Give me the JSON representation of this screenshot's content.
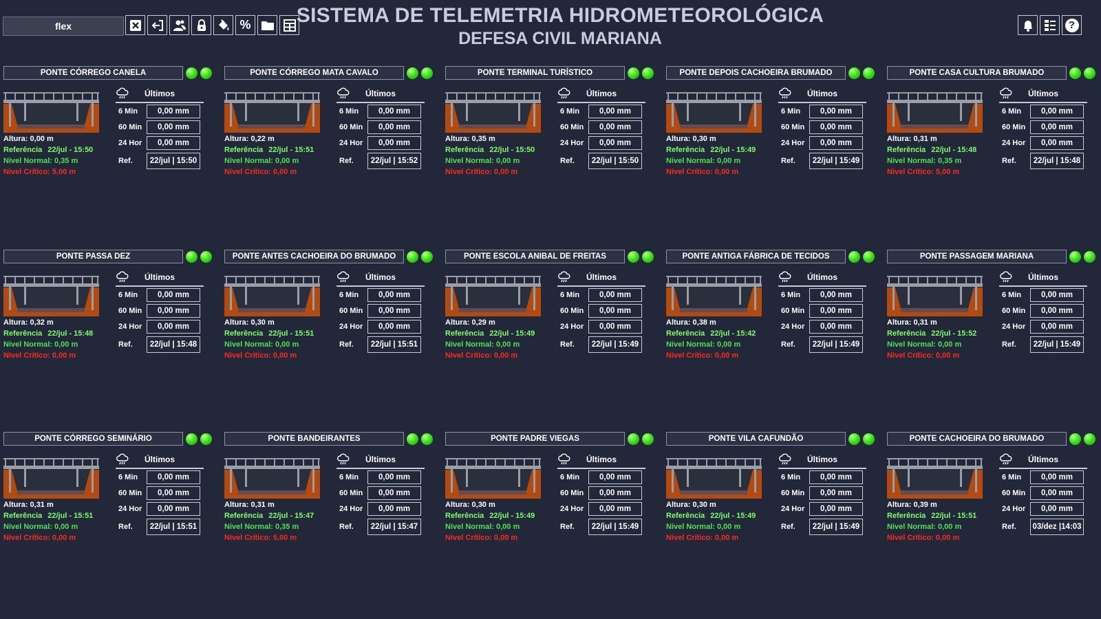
{
  "header": {
    "user": "flex",
    "title": "SISTEMA DE TELEMETRIA HIDROMETEOROLÓGICA",
    "subtitle": "DEFESA CIVIL MARIANA",
    "toolbar_icons": [
      "close-icon",
      "logout-icon",
      "users-icon",
      "lock-icon",
      "paint-bucket-icon",
      "percent-icon",
      "folder-icon",
      "grid-icon"
    ],
    "right_icons": [
      "bell-icon",
      "list-icon",
      "help-icon"
    ],
    "percent_symbol": "%",
    "help_symbol": "?"
  },
  "labels": {
    "ultimos": "Últimos",
    "m6": "6 Min",
    "m60": "60 Min",
    "h24": "24 Hor",
    "ref": "Ref.",
    "altura": "Altura:",
    "referencia": "Referência",
    "normal": "Nivel Normal:",
    "critico": "Nivel Crítico:"
  },
  "colors": {
    "background": "#23273a",
    "led_on": "#3ee51b",
    "referencia": "#7dff6a",
    "normal": "#4ee34e",
    "critico": "#ff2a1a",
    "terrain": "#b34a10"
  },
  "stations": [
    {
      "name": "PONTE CÓRREGO CANELA",
      "altura": "0,00 m",
      "referencia": "22/jul - 15:50",
      "normal": "0,35 m",
      "critico": "5,00 m",
      "min6": "0,00 mm",
      "min60": "0,00 mm",
      "hor24": "0,00 mm",
      "ref": "22/jul | 15:50"
    },
    {
      "name": "PONTE CÓRREGO MATA CAVALO",
      "altura": "0,22 m",
      "referencia": "22/jul - 15:51",
      "normal": "0,00 m",
      "critico": "0,00 m",
      "min6": "0,00 mm",
      "min60": "0,00 mm",
      "hor24": "0,00 mm",
      "ref": "22/jul | 15:52"
    },
    {
      "name": "PONTE TERMINAL TURÍSTICO",
      "altura": "0,35 m",
      "referencia": "22/jul - 15:50",
      "normal": "0,00 m",
      "critico": "0,00 m",
      "min6": "0,00 mm",
      "min60": "0,00 mm",
      "hor24": "0,00 mm",
      "ref": "22/jul | 15:50"
    },
    {
      "name": "PONTE DEPOIS CACHOEIRA BRUMADO",
      "altura": "0,30 m",
      "referencia": "22/jul - 15:49",
      "normal": "0,00 m",
      "critico": "0,00 m",
      "min6": "0,00 mm",
      "min60": "0,00 mm",
      "hor24": "0,00 mm",
      "ref": "22/jul | 15:49"
    },
    {
      "name": "PONTE CASA CULTURA BRUMADO",
      "altura": "0,31 m",
      "referencia": "22/jul - 15:48",
      "normal": "0,35 m",
      "critico": "5,00 m",
      "min6": "0,00 mm",
      "min60": "0,00 mm",
      "hor24": "0,00 mm",
      "ref": "22/jul | 15:48"
    },
    {
      "name": "PONTE PASSA DEZ",
      "altura": "0,32 m",
      "referencia": "22/jul - 15:48",
      "normal": "0,00 m",
      "critico": "0,00 m",
      "min6": "0,00 mm",
      "min60": "0,00 mm",
      "hor24": "0,00 mm",
      "ref": "22/jul | 15:48"
    },
    {
      "name": "PONTE ANTES CACHOEIRA DO BRUMADO",
      "altura": "0,30 m",
      "referencia": "22/jul - 15:51",
      "normal": "0,00 m",
      "critico": "0,00 m",
      "min6": "0,00 mm",
      "min60": "0,00 mm",
      "hor24": "0,00 mm",
      "ref": "22/jul | 15:51"
    },
    {
      "name": "PONTE ESCOLA ANIBAL DE FREITAS",
      "altura": "0,29 m",
      "referencia": "22/jul - 15:49",
      "normal": "0,00 m",
      "critico": "0,00 m",
      "min6": "0,00 mm",
      "min60": "0,00 mm",
      "hor24": "0,00 mm",
      "ref": "22/jul | 15:49"
    },
    {
      "name": "PONTE ANTIGA FÁBRICA DE TECIDOS",
      "altura": "0,38 m",
      "referencia": "22/jul - 15:42",
      "normal": "0,00 m",
      "critico": "0,00 m",
      "min6": "0,00 mm",
      "min60": "0,00 mm",
      "hor24": "0,00 mm",
      "ref": "22/jul | 15:49"
    },
    {
      "name": "PONTE PASSAGEM MARIANA",
      "altura": "0,31 m",
      "referencia": "22/jul - 15:52",
      "normal": "0,00 m",
      "critico": "0,00 m",
      "min6": "0,00 mm",
      "min60": "0,00 mm",
      "hor24": "0,00 mm",
      "ref": "22/jul | 15:49"
    },
    {
      "name": "PONTE CÓRREGO SEMINÁRIO",
      "altura": "0,31 m",
      "referencia": "22/jul - 15:51",
      "normal": "0,00 m",
      "critico": "0,00 m",
      "min6": "0,00 mm",
      "min60": "0,00 mm",
      "hor24": "0,00 mm",
      "ref": "22/jul | 15:51"
    },
    {
      "name": "PONTE BANDEIRANTES",
      "altura": "0,31 m",
      "referencia": "22/jul - 15:47",
      "normal": "0,35 m",
      "critico": "5,00 m",
      "min6": "0,00 mm",
      "min60": "0,00 mm",
      "hor24": "0,00 mm",
      "ref": "22/jul | 15:47"
    },
    {
      "name": "PONTE PADRE VIEGAS",
      "altura": "0,30 m",
      "referencia": "22/jul - 15:49",
      "normal": "0,00 m",
      "critico": "0,00 m",
      "min6": "0,00 mm",
      "min60": "0,00 mm",
      "hor24": "0,00 mm",
      "ref": "22/jul | 15:49"
    },
    {
      "name": "PONTE VILA CAFUNDÃO",
      "altura": "0,30 m",
      "referencia": "22/jul - 15:49",
      "normal": "0,00 m",
      "critico": "0,00 m",
      "min6": "0,00 mm",
      "min60": "0,00 mm",
      "hor24": "0,00 mm",
      "ref": "22/jul | 15:49"
    },
    {
      "name": "PONTE CACHOEIRA DO BRUMADO",
      "altura": "0,39 m",
      "referencia": "22/jul - 15:51",
      "normal": "0,00 m",
      "critico": "0,00 m",
      "min6": "0,00 mm",
      "min60": "0,00 mm",
      "hor24": "0,00 mm",
      "ref": "03/dez |14:03"
    }
  ]
}
